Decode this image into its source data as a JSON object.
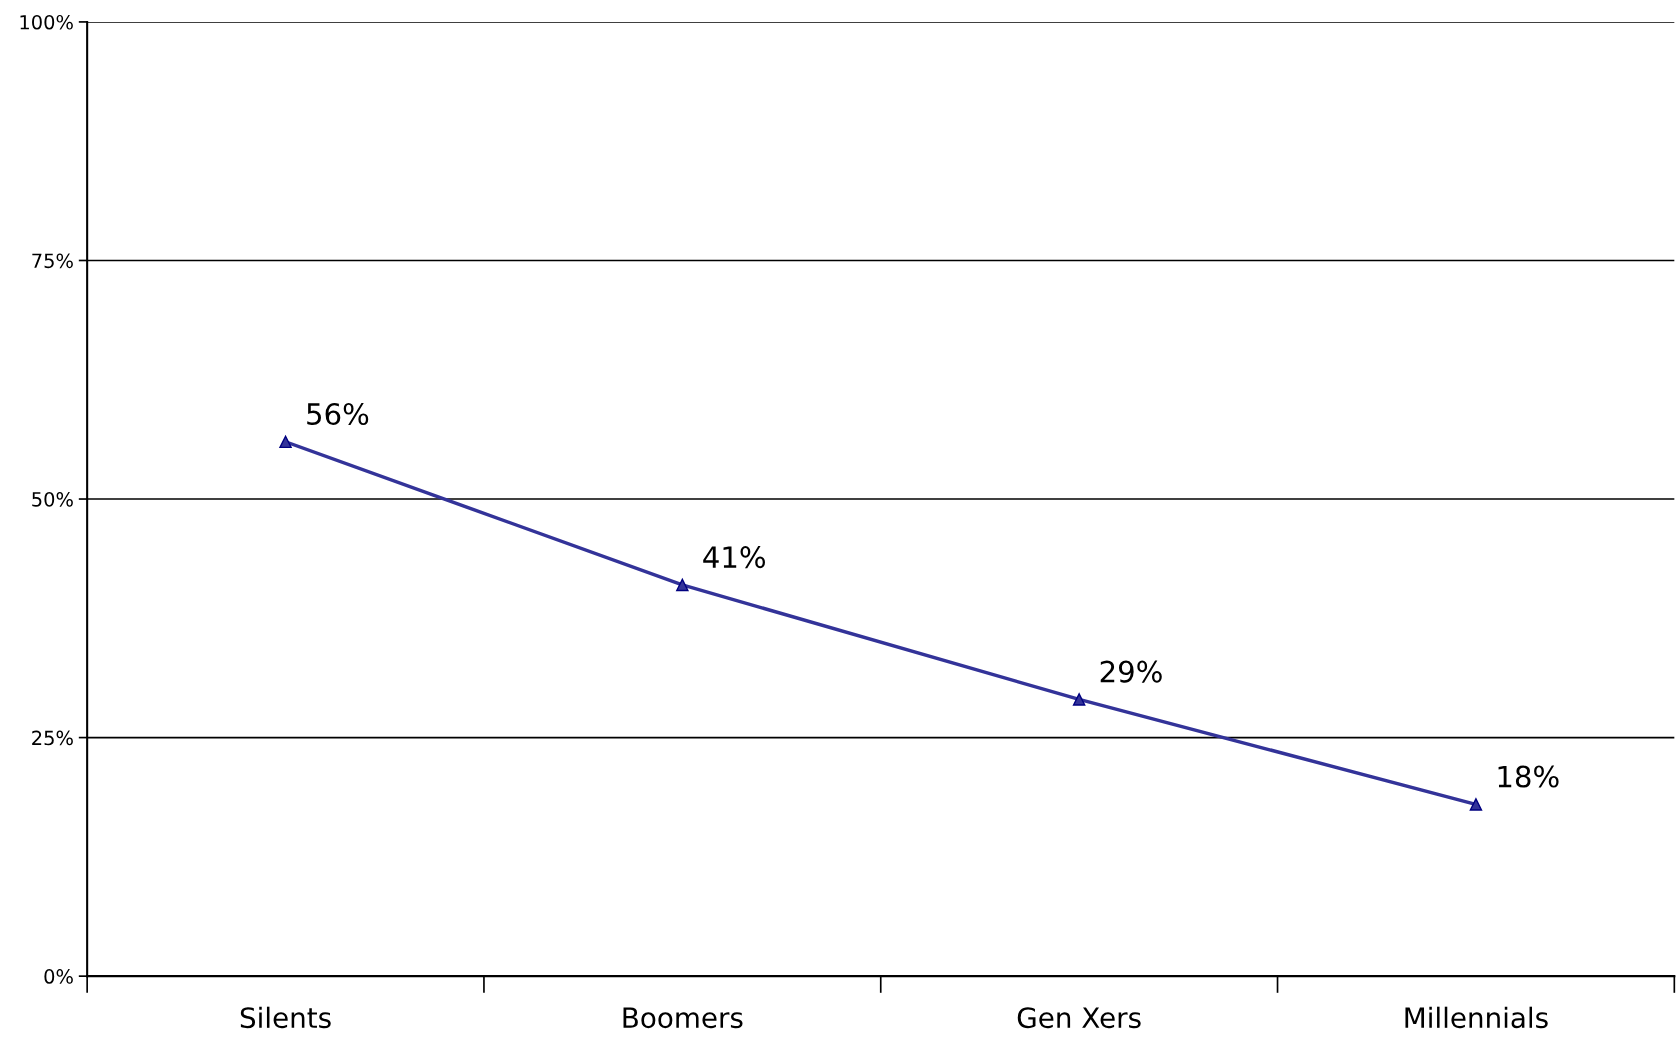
{
  "chart_data": {
    "type": "line",
    "categories": [
      "Silents",
      "Boomers",
      "Gen Xers",
      "Millennials"
    ],
    "series": [
      {
        "color": "#333399",
        "values": [
          56,
          41,
          29,
          18
        ],
        "value_labels": [
          "56%",
          "41%",
          "29%",
          "18%"
        ]
      }
    ],
    "ylim": [
      0,
      100
    ],
    "yticks": [
      {
        "value": 0,
        "label": "0%"
      },
      {
        "value": 25,
        "label": "25%"
      },
      {
        "value": 50,
        "label": "50%"
      },
      {
        "value": 75,
        "label": "75%"
      },
      {
        "value": 100,
        "label": "100%"
      }
    ],
    "grid": "y",
    "marker": "triangle",
    "line_style": "solid"
  }
}
